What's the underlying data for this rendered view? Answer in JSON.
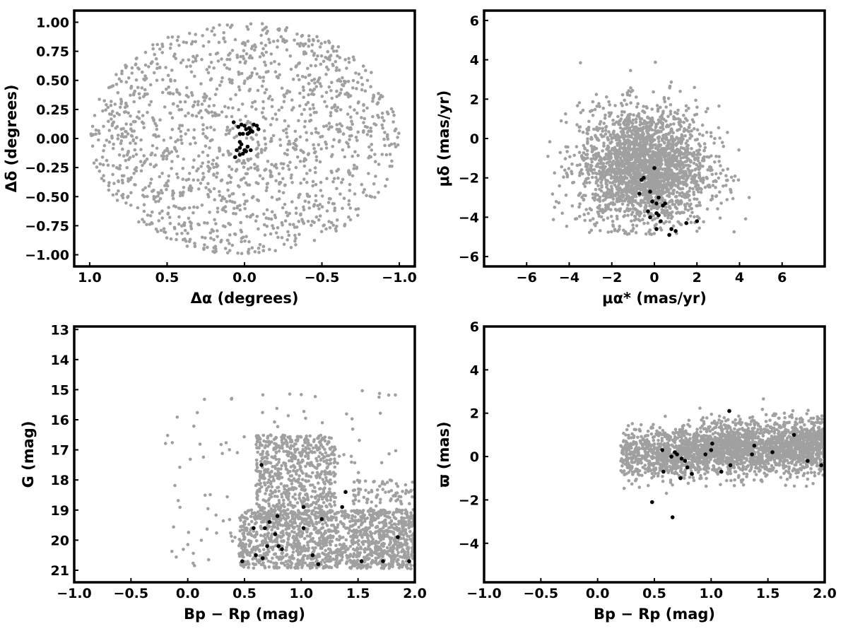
{
  "colors": {
    "field": "#a0a0a0",
    "members": "#000000"
  },
  "chart_data": [
    {
      "type": "scatter",
      "id": "sky",
      "xlabel": "Δα (degrees)",
      "ylabel": "Δδ (degrees)",
      "xlim": [
        1.1,
        -1.1
      ],
      "ylim": [
        -1.1,
        1.1
      ],
      "xticks": [
        1.0,
        0.5,
        0.0,
        -0.5,
        -1.0
      ],
      "xtick_labels": [
        "1.0",
        "0.5",
        "0.0",
        "−0.5",
        "−1.0"
      ],
      "yticks": [
        -1.0,
        -0.75,
        -0.5,
        -0.25,
        0.0,
        0.25,
        0.5,
        0.75,
        1.0
      ],
      "ytick_labels": [
        "−1.00",
        "−0.75",
        "−0.50",
        "−0.25",
        "0.00",
        "0.25",
        "0.50",
        "0.75",
        "1.00"
      ],
      "grid": false,
      "field": {
        "distribution": "uniform disk",
        "center": [
          0,
          0
        ],
        "radius": 1.0,
        "count": 1500
      },
      "members": [
        [
          0.07,
          0.14
        ],
        [
          0.02,
          0.12
        ],
        [
          0.0,
          0.11
        ],
        [
          0.04,
          0.1
        ],
        [
          -0.01,
          0.08
        ],
        [
          -0.03,
          0.09
        ],
        [
          -0.06,
          0.12
        ],
        [
          -0.08,
          0.11
        ],
        [
          -0.09,
          0.08
        ],
        [
          -0.05,
          0.06
        ],
        [
          -0.03,
          0.05
        ],
        [
          -0.04,
          0.07
        ],
        [
          -0.02,
          0.04
        ],
        [
          0.03,
          0.04
        ],
        [
          0.01,
          0.04
        ],
        [
          0.03,
          -0.03
        ],
        [
          0.02,
          -0.05
        ],
        [
          0.03,
          -0.08
        ],
        [
          -0.02,
          -0.07
        ],
        [
          0.0,
          -0.1
        ],
        [
          0.01,
          -0.13
        ],
        [
          -0.01,
          -0.11
        ],
        [
          0.03,
          -0.14
        ],
        [
          0.05,
          -0.1
        ],
        [
          0.06,
          -0.16
        ],
        [
          -0.04,
          -0.1
        ],
        [
          0.04,
          0.1
        ]
      ]
    },
    {
      "type": "scatter",
      "id": "proper-motion",
      "xlabel": "μα* (mas/yr)",
      "ylabel": "μδ (mas/yr)",
      "xlim": [
        -8,
        8
      ],
      "ylim": [
        -6.5,
        6.5
      ],
      "xticks": [
        -6,
        -4,
        -2,
        0,
        2,
        4,
        6
      ],
      "xtick_labels": [
        "−6",
        "−4",
        "−2",
        "0",
        "2",
        "4",
        "6"
      ],
      "yticks": [
        -6,
        -4,
        -2,
        0,
        2,
        4,
        6
      ],
      "ytick_labels": [
        "−6",
        "−4",
        "−2",
        "0",
        "2",
        "4",
        "6"
      ],
      "grid": false,
      "field": {
        "distribution": "gaussian cloud",
        "center": [
          -0.5,
          -1.5
        ],
        "sigma": [
          1.5,
          1.5
        ],
        "ymin": -4.9,
        "count": 2400
      },
      "members": [
        [
          0.0,
          -1.5
        ],
        [
          -0.5,
          -2.0
        ],
        [
          -0.6,
          -2.1
        ],
        [
          -0.7,
          -2.8
        ],
        [
          -0.2,
          -2.7
        ],
        [
          0.2,
          -3.0
        ],
        [
          0.1,
          -3.3
        ],
        [
          -0.1,
          -3.2
        ],
        [
          0.5,
          -3.3
        ],
        [
          0.4,
          -3.4
        ],
        [
          -0.3,
          -3.7
        ],
        [
          0.1,
          -3.8
        ],
        [
          0.2,
          -3.9
        ],
        [
          -0.2,
          -4.0
        ],
        [
          0.3,
          -4.2
        ],
        [
          1.5,
          -4.3
        ],
        [
          2.0,
          -4.2
        ],
        [
          0.1,
          -4.6
        ],
        [
          0.8,
          -4.6
        ],
        [
          1.0,
          -4.7
        ],
        [
          0.7,
          -4.9
        ]
      ]
    },
    {
      "type": "scatter",
      "id": "cmd",
      "xlabel": "Bp − Rp (mag)",
      "ylabel": "G (mag)",
      "xlim": [
        -1.0,
        2.0
      ],
      "ylim": [
        21.4,
        12.9
      ],
      "y_inverted": true,
      "xticks": [
        -1.0,
        -0.5,
        0.0,
        0.5,
        1.0,
        1.5,
        2.0
      ],
      "xtick_labels": [
        "−1.0",
        "−0.5",
        "0.0",
        "0.5",
        "1.0",
        "1.5",
        "2.0"
      ],
      "yticks": [
        13,
        14,
        15,
        16,
        17,
        18,
        19,
        20,
        21
      ],
      "ytick_labels": [
        "13",
        "14",
        "15",
        "16",
        "17",
        "18",
        "19",
        "20",
        "21"
      ],
      "grid": false,
      "field": {
        "distribution": "color-magnitude diagram",
        "count": 2300
      },
      "members": [
        [
          0.48,
          20.7
        ],
        [
          0.66,
          20.6
        ],
        [
          0.6,
          20.5
        ],
        [
          0.7,
          20.2
        ],
        [
          0.8,
          20.2
        ],
        [
          0.83,
          20.3
        ],
        [
          1.1,
          20.5
        ],
        [
          1.15,
          20.8
        ],
        [
          1.53,
          20.7
        ],
        [
          1.72,
          20.7
        ],
        [
          1.95,
          20.7
        ],
        [
          1.85,
          19.9
        ],
        [
          0.58,
          19.6
        ],
        [
          0.68,
          19.6
        ],
        [
          0.72,
          19.4
        ],
        [
          0.77,
          19.8
        ],
        [
          0.79,
          19.2
        ],
        [
          1.02,
          19.6
        ],
        [
          1.18,
          19.3
        ],
        [
          1.36,
          18.9
        ],
        [
          1.02,
          18.9
        ],
        [
          1.39,
          18.4
        ],
        [
          0.65,
          17.5
        ]
      ]
    },
    {
      "type": "scatter",
      "id": "parallax",
      "xlabel": "Bp − Rp (mag)",
      "ylabel": "ϖ (mas)",
      "xlim": [
        -1.0,
        2.0
      ],
      "ylim": [
        -5.8,
        6.0
      ],
      "xticks": [
        -1.0,
        -0.5,
        0.0,
        0.5,
        1.0,
        1.5,
        2.0
      ],
      "xtick_labels": [
        "−1.0",
        "−0.5",
        "0.0",
        "0.5",
        "1.0",
        "1.5",
        "2.0"
      ],
      "yticks": [
        -4,
        -2,
        0,
        2,
        4,
        6
      ],
      "ytick_labels": [
        "−4",
        "−2",
        "0",
        "2",
        "4",
        "6"
      ],
      "grid": false,
      "field": {
        "distribution": "parallax band",
        "count": 2600
      },
      "members": [
        [
          0.57,
          0.3
        ],
        [
          0.58,
          -0.7
        ],
        [
          0.65,
          0.0
        ],
        [
          0.68,
          0.2
        ],
        [
          0.7,
          0.1
        ],
        [
          0.74,
          -0.1
        ],
        [
          0.77,
          -0.2
        ],
        [
          0.79,
          -0.5
        ],
        [
          0.73,
          -1.0
        ],
        [
          0.83,
          -0.8
        ],
        [
          1.0,
          0.3
        ],
        [
          1.01,
          0.6
        ],
        [
          1.09,
          -0.7
        ],
        [
          1.17,
          -0.4
        ],
        [
          1.16,
          2.1
        ],
        [
          1.36,
          0.1
        ],
        [
          1.38,
          0.5
        ],
        [
          1.54,
          0.2
        ],
        [
          1.73,
          1.0
        ],
        [
          1.85,
          -0.2
        ],
        [
          1.97,
          -0.4
        ],
        [
          0.48,
          -2.1
        ],
        [
          0.66,
          -2.8
        ],
        [
          0.95,
          0.1
        ]
      ]
    }
  ]
}
